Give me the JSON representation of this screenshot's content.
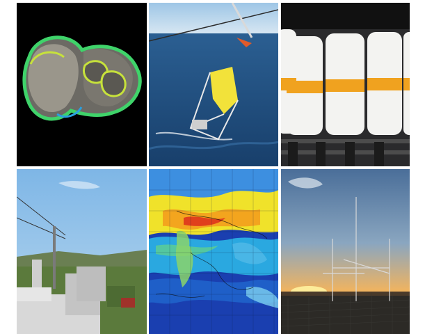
{
  "tiles": [
    {
      "id": "microscopy",
      "subject": "organism-3d-render-icon"
    },
    {
      "id": "ocean-sampler",
      "subject": "plankton-net-deployment-icon"
    },
    {
      "id": "sample-bottles",
      "subject": "labeled-sample-bottles-icon"
    },
    {
      "id": "observatory",
      "subject": "rooftop-instrument-station-icon"
    },
    {
      "id": "satellite-map",
      "subject": "global-concentration-map-icon"
    },
    {
      "id": "antenna-sunset",
      "subject": "antenna-mast-sunset-icon"
    }
  ],
  "colors": {
    "ocean": "#1f4f86",
    "sky_day": "#8fc3f0",
    "sunset": "#f08a2a",
    "map_low": "#1a3fb0",
    "map_high": "#e0401c",
    "specimen_outline": "#3fd36a"
  }
}
